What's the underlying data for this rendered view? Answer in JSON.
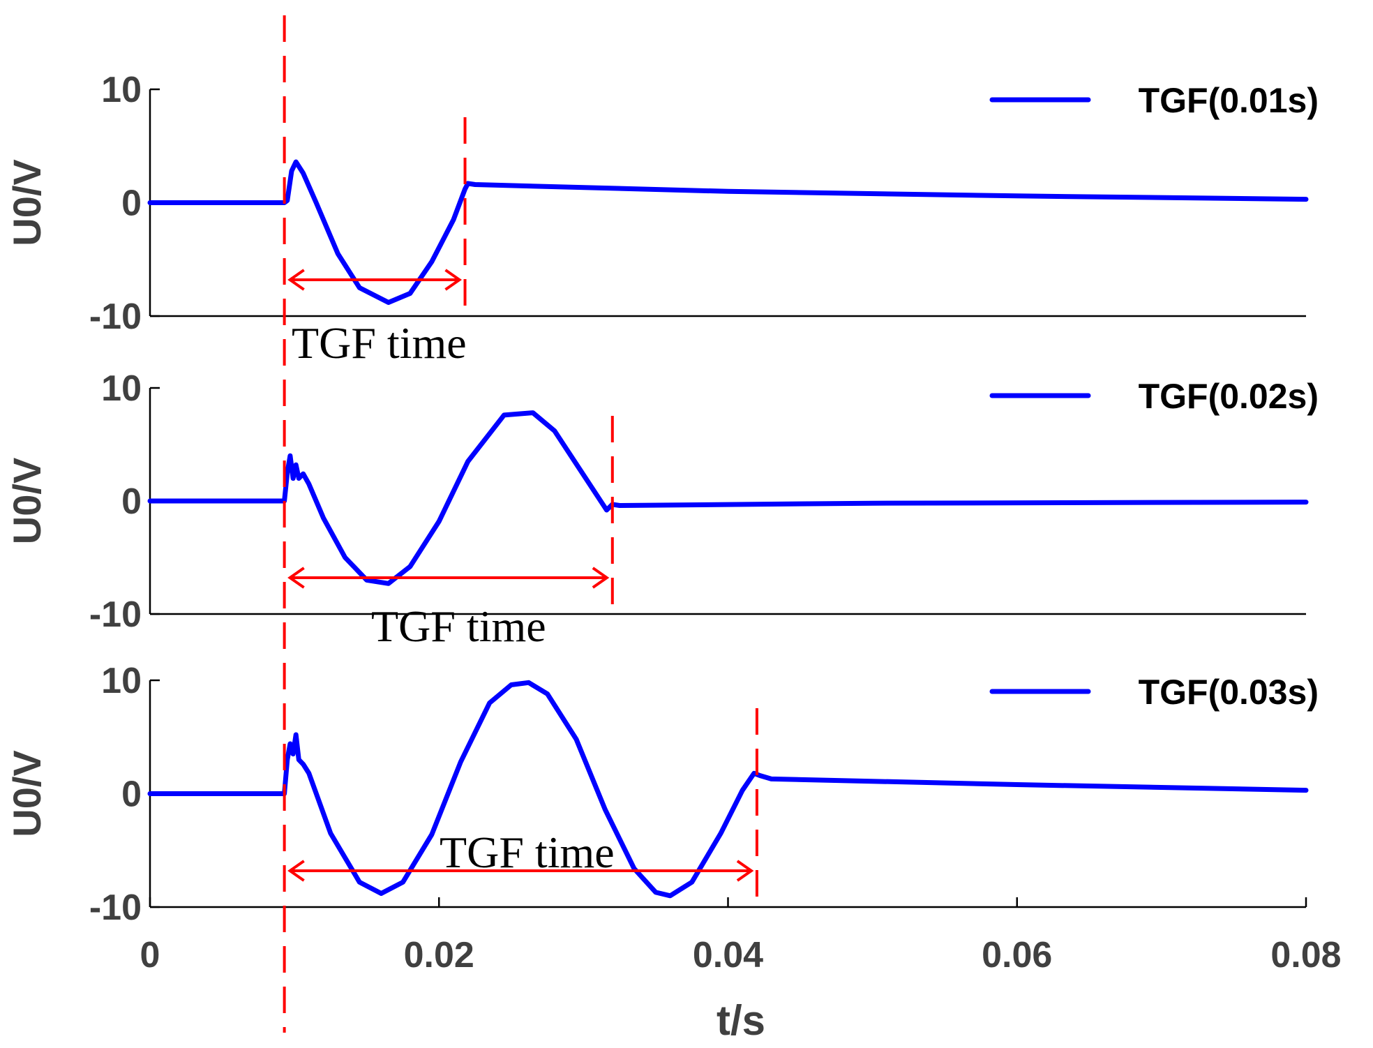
{
  "colors": {
    "series": "#0000ff",
    "marker": "#ff0000",
    "axis": "#000000",
    "label": "#404040"
  },
  "chart_data": [
    {
      "type": "line",
      "title": "",
      "ylabel": "U0/V",
      "xlabel": "",
      "xlim": [
        0,
        0.08
      ],
      "ylim": [
        -10,
        10
      ],
      "yticks": [
        10,
        0,
        -10
      ],
      "ytick_labels": [
        "10",
        "0",
        "-10"
      ],
      "xticks": [],
      "xtick_labels": [],
      "series": [
        {
          "name": "TGF(0.01s)",
          "x": [
            0,
            0.0093,
            0.0095,
            0.0098,
            0.0101,
            0.0106,
            0.0115,
            0.013,
            0.0145,
            0.0165,
            0.018,
            0.0195,
            0.021,
            0.0218,
            0.022,
            0.0225,
            0.04,
            0.06,
            0.08
          ],
          "y": [
            0,
            0,
            0.2,
            2.8,
            3.6,
            2.6,
            0,
            -4.5,
            -7.5,
            -8.8,
            -8.0,
            -5.2,
            -1.5,
            1.2,
            1.7,
            1.6,
            1.0,
            0.6,
            0.3
          ]
        }
      ],
      "markers": {
        "start": 0.0093,
        "end": 0.0218,
        "fault_span": [
          0.0093,
          0.0218
        ]
      },
      "annotation": {
        "text": "TGF time",
        "x": 0.0093,
        "y": -10
      },
      "legend": {
        "location": "top-right"
      }
    },
    {
      "type": "line",
      "title": "",
      "ylabel": "U0/V",
      "xlabel": "",
      "xlim": [
        0,
        0.08
      ],
      "ylim": [
        -10,
        10
      ],
      "yticks": [
        10,
        0,
        -10
      ],
      "ytick_labels": [
        "10",
        "0",
        "-10"
      ],
      "xticks": [],
      "xtick_labels": [],
      "series": [
        {
          "name": "TGF(0.02s)",
          "x": [
            0,
            0.0093,
            0.0095,
            0.0097,
            0.0099,
            0.0101,
            0.0103,
            0.0106,
            0.011,
            0.012,
            0.0135,
            0.015,
            0.0165,
            0.018,
            0.02,
            0.022,
            0.0245,
            0.0265,
            0.028,
            0.03,
            0.0316,
            0.032,
            0.0325,
            0.05,
            0.08
          ],
          "y": [
            0,
            0,
            2.5,
            4.0,
            2.0,
            3.2,
            2.0,
            2.4,
            1.5,
            -1.5,
            -5.0,
            -7.0,
            -7.3,
            -5.8,
            -1.8,
            3.5,
            7.6,
            7.8,
            6.2,
            2.3,
            -0.8,
            -0.3,
            -0.4,
            -0.2,
            -0.1
          ]
        }
      ],
      "markers": {
        "start": 0.0093,
        "end": 0.032,
        "fault_span": [
          0.0093,
          0.032
        ]
      },
      "annotation": {
        "text": "TGF time",
        "x": 0.0093,
        "y": -10
      },
      "legend": {
        "location": "top-right"
      }
    },
    {
      "type": "line",
      "title": "",
      "ylabel": "U0/V",
      "xlabel": "t/s",
      "xlim": [
        0,
        0.08
      ],
      "ylim": [
        -10,
        10
      ],
      "yticks": [
        10,
        0,
        -10
      ],
      "ytick_labels": [
        "10",
        "0",
        "-10"
      ],
      "xticks": [
        0,
        0.02,
        0.04,
        0.06,
        0.08
      ],
      "xtick_labels": [
        "0",
        "0.02",
        "0.04",
        "0.06",
        "0.08"
      ],
      "series": [
        {
          "name": "TGF(0.03s)",
          "x": [
            0,
            0.0093,
            0.0095,
            0.0097,
            0.0099,
            0.0101,
            0.0103,
            0.0106,
            0.011,
            0.0125,
            0.0145,
            0.016,
            0.0175,
            0.0195,
            0.0215,
            0.0235,
            0.025,
            0.0262,
            0.0275,
            0.0295,
            0.0315,
            0.0335,
            0.035,
            0.036,
            0.0375,
            0.0395,
            0.041,
            0.0418,
            0.0422,
            0.043,
            0.06,
            0.08
          ],
          "y": [
            0,
            0,
            3.0,
            4.4,
            3.5,
            5.2,
            3.0,
            2.6,
            1.8,
            -3.5,
            -7.8,
            -8.8,
            -7.8,
            -3.6,
            2.8,
            8.0,
            9.6,
            9.8,
            8.8,
            4.8,
            -1.4,
            -6.6,
            -8.7,
            -9.0,
            -7.8,
            -3.5,
            0.3,
            1.8,
            1.6,
            1.3,
            0.8,
            0.3
          ]
        }
      ],
      "markers": {
        "start": 0.0093,
        "end": 0.042,
        "fault_span": [
          0.0093,
          0.042
        ]
      },
      "annotation": {
        "text": "TGF time",
        "x": 0.0093,
        "y": -10
      },
      "legend": {
        "location": "top-right"
      }
    }
  ]
}
